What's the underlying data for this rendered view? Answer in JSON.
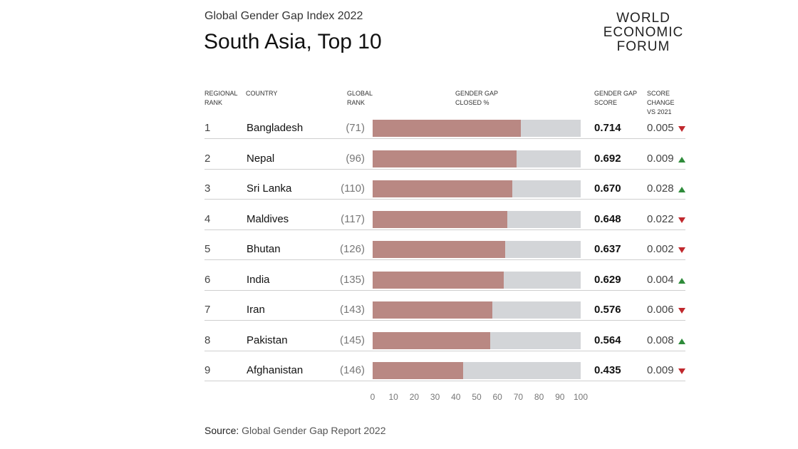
{
  "chart_data": {
    "type": "bar",
    "orientation": "horizontal",
    "supertitle": "Global Gender Gap Index 2022",
    "title": "South Asia, Top 10",
    "logo": [
      "WORLD",
      "ECONOMIC",
      "FORUM"
    ],
    "headers": {
      "regional_rank": "REGIONAL RANK",
      "country": "COUNTRY",
      "global_rank": "GLOBAL RANK",
      "bar": "GENDER GAP CLOSED %",
      "score": "GENDER GAP SCORE",
      "change": "SCORE CHANGE VS 2021"
    },
    "regional_rank": [
      1,
      2,
      3,
      4,
      5,
      6,
      7,
      8,
      9
    ],
    "categories": [
      "Bangladesh",
      "Nepal",
      "Sri Lanka",
      "Maldives",
      "Bhutan",
      "India",
      "Iran",
      "Pakistan",
      "Afghanistan"
    ],
    "global_rank": [
      "(71)",
      "(96)",
      "(110)",
      "(117)",
      "(126)",
      "(135)",
      "(143)",
      "(145)",
      "(146)"
    ],
    "series": [
      {
        "color": "#b98883",
        "values": [
          71.4,
          69.2,
          67.0,
          64.8,
          63.7,
          62.9,
          57.6,
          56.4,
          43.5
        ]
      }
    ],
    "bar_background": "#d3d5d8",
    "score": [
      0.714,
      0.692,
      0.67,
      0.648,
      0.637,
      0.629,
      0.576,
      0.564,
      0.435
    ],
    "score_labels": [
      "0.714",
      "0.692",
      "0.670",
      "0.648",
      "0.637",
      "0.629",
      "0.576",
      "0.564",
      "0.435"
    ],
    "change": [
      0.005,
      0.009,
      0.028,
      0.022,
      0.002,
      0.004,
      0.006,
      0.008,
      0.009
    ],
    "change_labels": [
      "0.005",
      "0.009",
      "0.028",
      "0.022",
      "0.002",
      "0.004",
      "0.006",
      "0.008",
      "0.009"
    ],
    "change_direction": [
      "down",
      "up",
      "up",
      "down",
      "down",
      "up",
      "down",
      "up",
      "down"
    ],
    "direction_colors": {
      "up": "#2e8b3a",
      "down": "#c0282d"
    },
    "xlim": [
      0,
      100
    ],
    "xticks": [
      0,
      10,
      20,
      30,
      40,
      50,
      60,
      70,
      80,
      90,
      100
    ],
    "source_label": "Source:",
    "source": "Global Gender Gap Report 2022"
  }
}
